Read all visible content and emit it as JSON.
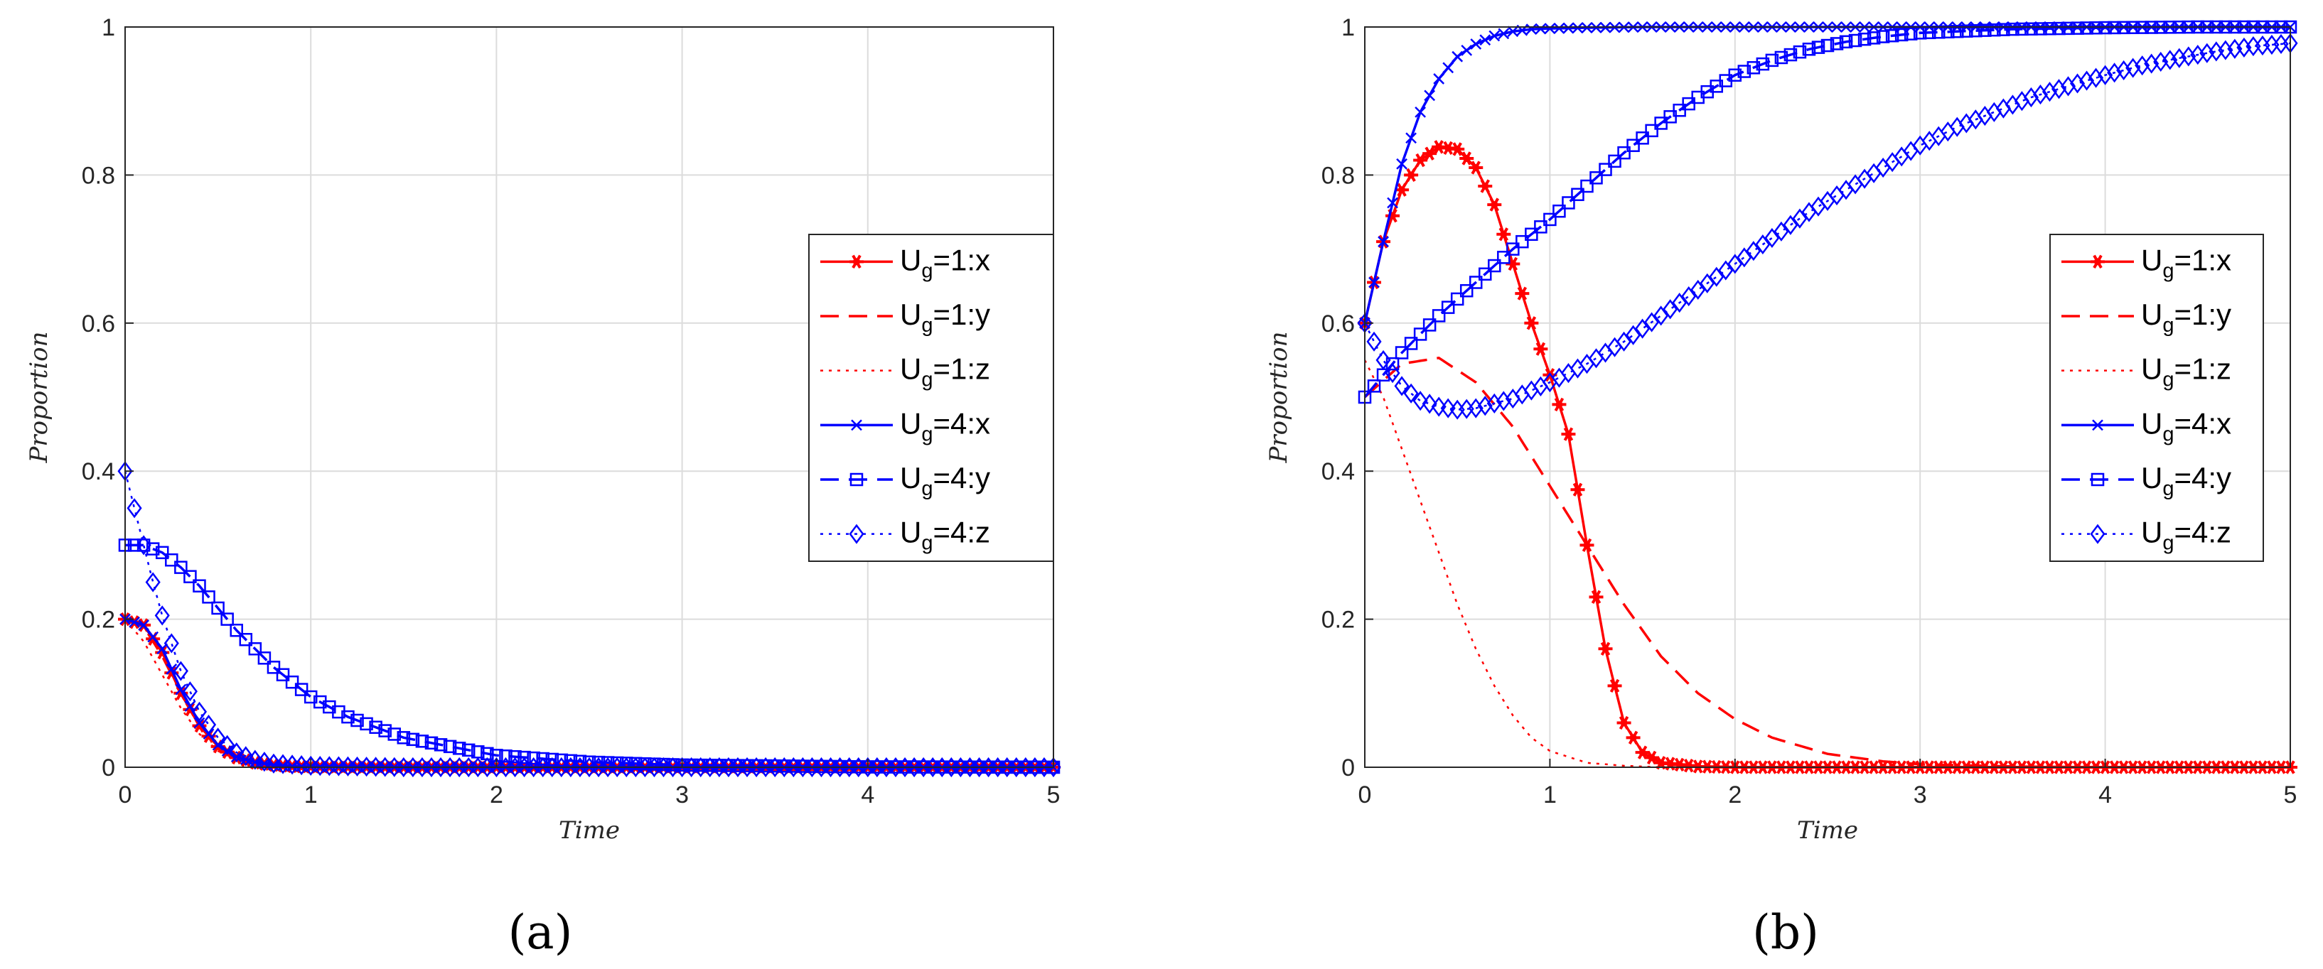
{
  "colors": {
    "red": "#ff0000",
    "blue": "#0000ff",
    "grid": "#dcdcdc",
    "axis": "#262626"
  },
  "chart_data": [
    {
      "type": "line",
      "panel_label": "(a)",
      "xlabel": "Time",
      "ylabel": "Proportion",
      "xlim": [
        0,
        5
      ],
      "ylim": [
        0,
        1
      ],
      "xticks": [
        "0",
        "1",
        "2",
        "3",
        "4",
        "5"
      ],
      "yticks": [
        "0",
        "0.2",
        "0.4",
        "0.6",
        "0.8",
        "1"
      ],
      "grid": true,
      "legend": "right",
      "series": [
        {
          "name": "Ug=1:x",
          "label_main": "U",
          "label_sub": "g",
          "label_rest": "=1:x",
          "color": "#ff0000",
          "dash": "solid",
          "marker": "star",
          "x": [
            0,
            0.1,
            0.2,
            0.3,
            0.4,
            0.5,
            0.6,
            0.7,
            0.8,
            0.9,
            1.0,
            1.5,
            2,
            3,
            4,
            5
          ],
          "y": [
            0.2,
            0.192,
            0.155,
            0.1,
            0.056,
            0.028,
            0.013,
            0.006,
            0.003,
            0.0015,
            0.0008,
            0.0001,
            0,
            0,
            0,
            0
          ]
        },
        {
          "name": "Ug=1:y",
          "label_main": "U",
          "label_sub": "g",
          "label_rest": "=1:y",
          "color": "#ff0000",
          "dash": "dashed",
          "marker": "none",
          "x": [
            0,
            0.1,
            0.2,
            0.3,
            0.4,
            0.5,
            0.6,
            0.7,
            0.8,
            1.0,
            1.5,
            2,
            3,
            4,
            5
          ],
          "y": [
            0.2,
            0.19,
            0.15,
            0.1,
            0.06,
            0.03,
            0.015,
            0.007,
            0.003,
            0.001,
            0,
            0,
            0,
            0,
            0
          ]
        },
        {
          "name": "Ug=1:z",
          "label_main": "U",
          "label_sub": "g",
          "label_rest": "=1:z",
          "color": "#ff0000",
          "dash": "dotted",
          "marker": "none",
          "x": [
            0,
            0.1,
            0.2,
            0.3,
            0.4,
            0.5,
            0.6,
            0.7,
            0.8,
            1.0,
            1.5,
            2,
            3,
            4,
            5
          ],
          "y": [
            0.2,
            0.17,
            0.125,
            0.08,
            0.045,
            0.022,
            0.01,
            0.005,
            0.002,
            0.0005,
            0,
            0,
            0,
            0,
            0
          ]
        },
        {
          "name": "Ug=4:x",
          "label_main": "U",
          "label_sub": "g",
          "label_rest": "=4:x",
          "color": "#0000ff",
          "dash": "solid",
          "marker": "x",
          "x": [
            0,
            0.1,
            0.2,
            0.3,
            0.4,
            0.5,
            0.6,
            0.7,
            0.8,
            0.9,
            1.0,
            1.5,
            2,
            3,
            4,
            5
          ],
          "y": [
            0.2,
            0.192,
            0.16,
            0.105,
            0.06,
            0.03,
            0.014,
            0.007,
            0.003,
            0.0015,
            0.0008,
            0.0001,
            0,
            0,
            0,
            0
          ]
        },
        {
          "name": "Ug=4:y",
          "label_main": "U",
          "label_sub": "g",
          "label_rest": "=4:y",
          "color": "#0000ff",
          "dash": "dashed",
          "marker": "square",
          "x": [
            0,
            0.1,
            0.2,
            0.3,
            0.4,
            0.5,
            0.6,
            0.8,
            1.0,
            1.2,
            1.5,
            2.0,
            2.5,
            3,
            4,
            5
          ],
          "y": [
            0.3,
            0.3,
            0.29,
            0.27,
            0.245,
            0.215,
            0.185,
            0.135,
            0.095,
            0.068,
            0.04,
            0.016,
            0.007,
            0.003,
            0.0005,
            0
          ]
        },
        {
          "name": "Ug=4:z",
          "label_main": "U",
          "label_sub": "g",
          "label_rest": "=4:z",
          "color": "#0000ff",
          "dash": "dotted",
          "marker": "diamond",
          "x": [
            0,
            0.05,
            0.1,
            0.15,
            0.2,
            0.3,
            0.4,
            0.5,
            0.6,
            0.7,
            0.8,
            1.0,
            1.5,
            2,
            3,
            4,
            5
          ],
          "y": [
            0.4,
            0.35,
            0.3,
            0.25,
            0.205,
            0.13,
            0.075,
            0.04,
            0.02,
            0.01,
            0.005,
            0.002,
            0,
            0,
            0,
            0,
            0
          ]
        }
      ]
    },
    {
      "type": "line",
      "panel_label": "(b)",
      "xlabel": "Time",
      "ylabel": "Proportion",
      "xlim": [
        0,
        5
      ],
      "ylim": [
        0,
        1
      ],
      "xticks": [
        "0",
        "1",
        "2",
        "3",
        "4",
        "5"
      ],
      "yticks": [
        "0",
        "0.2",
        "0.4",
        "0.6",
        "0.8",
        "1"
      ],
      "grid": true,
      "legend": "right",
      "series": [
        {
          "name": "Ug=1:x",
          "label_main": "U",
          "label_sub": "g",
          "label_rest": "=1:x",
          "color": "#ff0000",
          "dash": "solid",
          "marker": "star",
          "x": [
            0,
            0.1,
            0.2,
            0.3,
            0.4,
            0.5,
            0.6,
            0.7,
            0.8,
            0.9,
            1.0,
            1.1,
            1.2,
            1.3,
            1.4,
            1.5,
            1.6,
            1.8,
            2.0,
            3,
            4,
            5
          ],
          "y": [
            0.6,
            0.71,
            0.78,
            0.82,
            0.838,
            0.835,
            0.81,
            0.76,
            0.68,
            0.6,
            0.53,
            0.45,
            0.3,
            0.16,
            0.06,
            0.02,
            0.006,
            0.001,
            0,
            0,
            0,
            0
          ]
        },
        {
          "name": "Ug=1:y",
          "label_main": "U",
          "label_sub": "g",
          "label_rest": "=1:y",
          "color": "#ff0000",
          "dash": "dashed",
          "marker": "none",
          "x": [
            0,
            0.2,
            0.4,
            0.6,
            0.8,
            1.0,
            1.2,
            1.4,
            1.6,
            1.8,
            2.0,
            2.2,
            2.5,
            2.8,
            3.0,
            3.5,
            4,
            5
          ],
          "y": [
            0.5,
            0.545,
            0.553,
            0.52,
            0.46,
            0.38,
            0.3,
            0.22,
            0.15,
            0.1,
            0.065,
            0.04,
            0.018,
            0.008,
            0.004,
            0.001,
            0,
            0
          ]
        },
        {
          "name": "Ug=1:z",
          "label_main": "U",
          "label_sub": "g",
          "label_rest": "=1:z",
          "color": "#ff0000",
          "dash": "dotted",
          "marker": "none",
          "x": [
            0,
            0.1,
            0.2,
            0.3,
            0.4,
            0.5,
            0.6,
            0.7,
            0.8,
            0.9,
            1.0,
            1.2,
            1.4,
            1.6,
            2.0,
            3,
            4,
            5
          ],
          "y": [
            0.55,
            0.5,
            0.43,
            0.36,
            0.29,
            0.22,
            0.16,
            0.11,
            0.07,
            0.04,
            0.022,
            0.006,
            0.002,
            0,
            0,
            0,
            0,
            0
          ]
        },
        {
          "name": "Ug=4:x",
          "label_main": "U",
          "label_sub": "g",
          "label_rest": "=4:x",
          "color": "#0000ff",
          "dash": "solid",
          "marker": "x",
          "x": [
            0,
            0.1,
            0.2,
            0.3,
            0.4,
            0.5,
            0.6,
            0.7,
            0.8,
            0.9,
            1.0,
            1.2,
            1.5,
            2,
            3,
            4,
            5
          ],
          "y": [
            0.6,
            0.71,
            0.815,
            0.885,
            0.93,
            0.96,
            0.977,
            0.988,
            0.994,
            0.997,
            0.998,
            0.999,
            1,
            1,
            1,
            1,
            1
          ]
        },
        {
          "name": "Ug=4:y",
          "label_main": "U",
          "label_sub": "g",
          "label_rest": "=4:y",
          "color": "#0000ff",
          "dash": "dashed",
          "marker": "square",
          "x": [
            0,
            0.2,
            0.4,
            0.6,
            0.8,
            1.0,
            1.2,
            1.4,
            1.6,
            1.8,
            2.0,
            2.2,
            2.4,
            2.6,
            2.8,
            3.0,
            3.5,
            4,
            4.5,
            5
          ],
          "y": [
            0.5,
            0.56,
            0.61,
            0.655,
            0.7,
            0.74,
            0.785,
            0.83,
            0.87,
            0.905,
            0.935,
            0.955,
            0.97,
            0.98,
            0.987,
            0.992,
            0.997,
            0.999,
            1,
            1
          ]
        },
        {
          "name": "Ug=4:z",
          "label_main": "U",
          "label_sub": "g",
          "label_rest": "=4:z",
          "color": "#0000ff",
          "dash": "dotted",
          "marker": "diamond",
          "x": [
            0,
            0.1,
            0.2,
            0.3,
            0.4,
            0.5,
            0.6,
            0.8,
            1.0,
            1.2,
            1.4,
            1.6,
            1.8,
            2.0,
            2.2,
            2.4,
            2.6,
            2.8,
            3.0,
            3.2,
            3.4,
            3.6,
            3.8,
            4.0,
            4.2,
            4.4,
            4.6,
            4.8,
            5.0
          ],
          "y": [
            0.6,
            0.55,
            0.515,
            0.495,
            0.487,
            0.483,
            0.485,
            0.498,
            0.52,
            0.545,
            0.575,
            0.61,
            0.645,
            0.68,
            0.715,
            0.75,
            0.78,
            0.81,
            0.84,
            0.865,
            0.885,
            0.905,
            0.92,
            0.935,
            0.948,
            0.958,
            0.967,
            0.974,
            0.978
          ]
        }
      ]
    }
  ]
}
